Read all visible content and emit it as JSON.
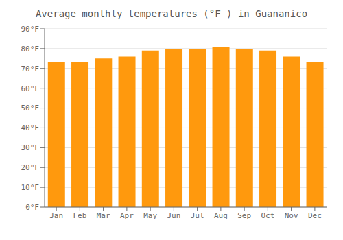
{
  "chart_data": {
    "type": "bar",
    "title": "Average monthly temperatures (°F ) in Guananico",
    "categories": [
      "Jan",
      "Feb",
      "Mar",
      "Apr",
      "May",
      "Jun",
      "Jul",
      "Aug",
      "Sep",
      "Oct",
      "Nov",
      "Dec"
    ],
    "values": [
      73,
      73,
      75,
      76,
      79,
      80,
      80,
      81,
      80,
      79,
      76,
      73
    ],
    "color": "#ff990d",
    "ylim": [
      0,
      90
    ],
    "yticks": [
      {
        "value": 0,
        "label": "0°F"
      },
      {
        "value": 10,
        "label": "10°F"
      },
      {
        "value": 20,
        "label": "20°F"
      },
      {
        "value": 30,
        "label": "30°F"
      },
      {
        "value": 40,
        "label": "40°F"
      },
      {
        "value": 50,
        "label": "50°F"
      },
      {
        "value": 60,
        "label": "60°F"
      },
      {
        "value": 70,
        "label": "70°F"
      },
      {
        "value": 80,
        "label": "80°F"
      },
      {
        "value": 90,
        "label": "90°F"
      }
    ],
    "grid": true
  }
}
